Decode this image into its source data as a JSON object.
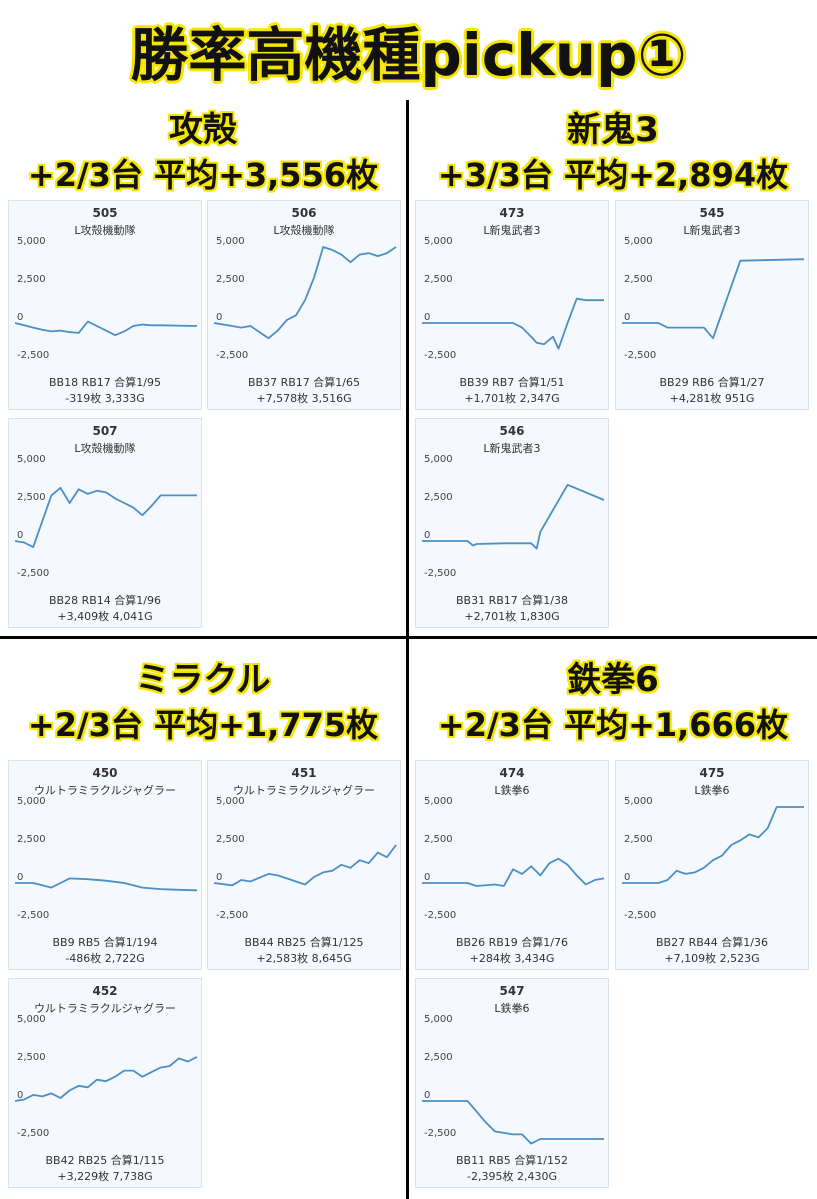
{
  "title": "勝率高機種pickup①",
  "sections": [
    {
      "name": "攻殻",
      "stats": "+2/3台 平均+3,556枚"
    },
    {
      "name": "新鬼3",
      "stats": "+3/3台 平均+2,894枚"
    },
    {
      "name": "ミラクル",
      "stats": "+2/3台 平均+1,775枚"
    },
    {
      "name": "鉄拳6",
      "stats": "+2/3台 平均+1,666枚"
    }
  ],
  "y_ticks": [
    "5,000",
    "2,500",
    "0",
    "-2,500"
  ],
  "chart_data": [
    {
      "type": "line",
      "number": "505",
      "machine": "L攻殻機動隊",
      "stats1": "BB18 RB17 合算1/95",
      "stats2": "-319枚 3,333G",
      "ylim": [
        -2500,
        5000
      ],
      "x": [
        0,
        0.05,
        0.1,
        0.15,
        0.2,
        0.25,
        0.3,
        0.35,
        0.4,
        0.45,
        0.5,
        0.55,
        0.6,
        0.65,
        0.7,
        0.75,
        0.8,
        1.0
      ],
      "y": [
        0,
        -150,
        -300,
        -450,
        -550,
        -500,
        -600,
        -650,
        100,
        -200,
        -500,
        -800,
        -550,
        -200,
        -100,
        -150,
        -150,
        -200
      ]
    },
    {
      "type": "line",
      "number": "506",
      "machine": "L攻殻機動隊",
      "stats1": "BB37 RB17 合算1/65",
      "stats2": "+7,578枚 3,516G",
      "ylim": [
        -2500,
        5000
      ],
      "x": [
        0,
        0.05,
        0.1,
        0.15,
        0.2,
        0.3,
        0.35,
        0.4,
        0.45,
        0.5,
        0.55,
        0.6,
        0.65,
        0.7,
        0.75,
        0.8,
        0.85,
        0.9,
        0.95,
        1.0
      ],
      "y": [
        0,
        -100,
        -200,
        -300,
        -200,
        -1000,
        -500,
        200,
        500,
        1500,
        3000,
        5000,
        4800,
        4500,
        4000,
        4500,
        4600,
        4400,
        4600,
        5000
      ]
    },
    {
      "type": "line",
      "number": "507",
      "machine": "L攻殻機動隊",
      "stats1": "BB28 RB14 合算1/96",
      "stats2": "+3,409枚 4,041G",
      "ylim": [
        -2500,
        5000
      ],
      "x": [
        0,
        0.05,
        0.1,
        0.2,
        0.25,
        0.3,
        0.35,
        0.4,
        0.45,
        0.5,
        0.55,
        0.6,
        0.65,
        0.7,
        0.75,
        0.8,
        0.85,
        1.0
      ],
      "y": [
        0,
        -100,
        -400,
        3000,
        3500,
        2500,
        3400,
        3100,
        3300,
        3200,
        2800,
        2500,
        2200,
        1700,
        2300,
        3000,
        3000,
        3000
      ]
    },
    {
      "type": "line",
      "number": "473",
      "machine": "L新鬼武者3",
      "stats1": "BB39 RB7 合算1/51",
      "stats2": "+1,701枚 2,347G",
      "ylim": [
        -2500,
        5000
      ],
      "x": [
        0,
        0.5,
        0.55,
        0.6,
        0.63,
        0.67,
        0.7,
        0.72,
        0.75,
        0.8,
        0.85,
        0.9,
        1.0
      ],
      "y": [
        0,
        0,
        -300,
        -900,
        -1300,
        -1400,
        -1100,
        -900,
        -1700,
        0,
        1600,
        1500,
        1500
      ]
    },
    {
      "type": "line",
      "number": "545",
      "machine": "L新鬼武者3",
      "stats1": "BB29 RB6 合算1/27",
      "stats2": "+4,281枚 951G",
      "ylim": [
        -2500,
        5000
      ],
      "x": [
        0,
        0.2,
        0.25,
        0.45,
        0.5,
        0.65,
        1.0
      ],
      "y": [
        0,
        0,
        -300,
        -300,
        -1000,
        4100,
        4200
      ]
    },
    {
      "type": "line",
      "number": "546",
      "machine": "L新鬼武者3",
      "stats1": "BB31 RB17 合算1/38",
      "stats2": "+2,701枚 1,830G",
      "ylim": [
        -2500,
        5000
      ],
      "x": [
        0,
        0.25,
        0.28,
        0.3,
        0.45,
        0.6,
        0.63,
        0.65,
        0.8,
        1.0
      ],
      "y": [
        0,
        0,
        -300,
        -200,
        -150,
        -150,
        -500,
        600,
        3700,
        2700
      ]
    },
    {
      "type": "line",
      "number": "450",
      "machine": "ウルトラミラクルジャグラー",
      "stats1": "BB9 RB5 合算1/194",
      "stats2": "-486枚 2,722G",
      "ylim": [
        -2500,
        5000
      ],
      "x": [
        0,
        0.1,
        0.15,
        0.2,
        0.25,
        0.3,
        0.4,
        0.5,
        0.6,
        0.7,
        0.8,
        0.9,
        1.0
      ],
      "y": [
        0,
        0,
        -150,
        -300,
        0,
        300,
        250,
        150,
        0,
        -300,
        -400,
        -450,
        -480
      ]
    },
    {
      "type": "line",
      "number": "451",
      "machine": "ウルトラミラクルジャグラー",
      "stats1": "BB44 RB25 合算1/125",
      "stats2": "+2,583枚 8,645G",
      "ylim": [
        -2500,
        5000
      ],
      "x": [
        0,
        0.1,
        0.15,
        0.2,
        0.25,
        0.3,
        0.35,
        0.4,
        0.45,
        0.5,
        0.55,
        0.6,
        0.65,
        0.7,
        0.75,
        0.8,
        0.85,
        0.9,
        0.95,
        1.0
      ],
      "y": [
        0,
        -150,
        200,
        100,
        350,
        600,
        500,
        300,
        100,
        -100,
        400,
        700,
        800,
        1200,
        1000,
        1500,
        1300,
        2000,
        1700,
        2500
      ]
    },
    {
      "type": "line",
      "number": "452",
      "machine": "ウルトラミラクルジャグラー",
      "stats1": "BB42 RB25 合算1/115",
      "stats2": "+3,229枚 7,738G",
      "ylim": [
        -2500,
        5000
      ],
      "x": [
        0,
        0.05,
        0.1,
        0.15,
        0.2,
        0.25,
        0.3,
        0.35,
        0.4,
        0.45,
        0.5,
        0.55,
        0.6,
        0.65,
        0.7,
        0.75,
        0.8,
        0.85,
        0.9,
        0.95,
        1.0
      ],
      "y": [
        0,
        100,
        400,
        300,
        500,
        200,
        700,
        1000,
        900,
        1400,
        1300,
        1600,
        2000,
        2000,
        1600,
        1900,
        2200,
        2300,
        2800,
        2600,
        2900
      ]
    },
    {
      "type": "line",
      "number": "474",
      "machine": "L鉄拳6",
      "stats1": "BB26 RB19 合算1/76",
      "stats2": "+284枚 3,434G",
      "ylim": [
        -2500,
        5000
      ],
      "x": [
        0,
        0.25,
        0.3,
        0.4,
        0.45,
        0.5,
        0.55,
        0.6,
        0.65,
        0.7,
        0.75,
        0.8,
        0.85,
        0.9,
        0.95,
        1.0
      ],
      "y": [
        0,
        0,
        -200,
        -100,
        -200,
        900,
        600,
        1100,
        500,
        1300,
        1600,
        1200,
        500,
        -100,
        200,
        300
      ]
    },
    {
      "type": "line",
      "number": "475",
      "machine": "L鉄拳6",
      "stats1": "BB27 RB44 合算1/36",
      "stats2": "+7,109枚 2,523G",
      "ylim": [
        -2500,
        5000
      ],
      "x": [
        0,
        0.2,
        0.25,
        0.3,
        0.35,
        0.4,
        0.45,
        0.5,
        0.55,
        0.6,
        0.65,
        0.7,
        0.75,
        0.8,
        0.85,
        1.0
      ],
      "y": [
        0,
        0,
        200,
        800,
        600,
        700,
        1000,
        1500,
        1800,
        2500,
        2800,
        3200,
        3000,
        3600,
        5000,
        7109
      ]
    },
    {
      "type": "line",
      "number": "547",
      "machine": "L鉄拳6",
      "stats1": "BB11 RB5 合算1/152",
      "stats2": "-2,395枚 2,430G",
      "ylim": [
        -2500,
        5000
      ],
      "x": [
        0,
        0.25,
        0.3,
        0.35,
        0.4,
        0.45,
        0.5,
        0.55,
        0.6,
        0.65,
        0.7,
        1.0
      ],
      "y": [
        0,
        0,
        -700,
        -1400,
        -2000,
        -2100,
        -2200,
        -2200,
        -2800,
        -2500,
        -2500,
        -2500
      ]
    }
  ]
}
